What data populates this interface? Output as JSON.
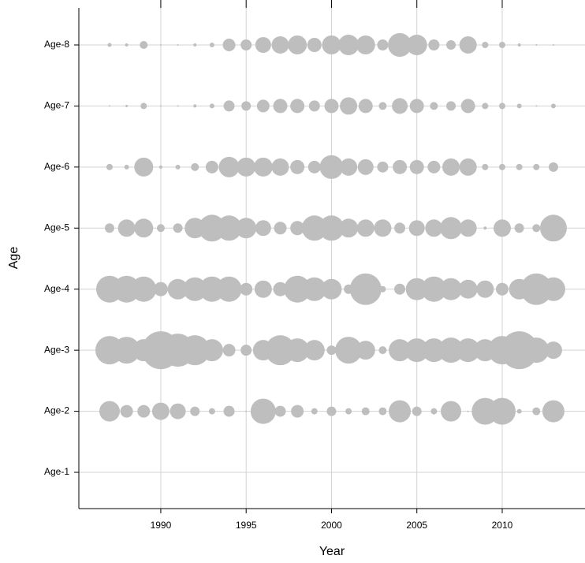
{
  "chart_data": {
    "type": "bubble",
    "x_label": "Year",
    "y_label": "Age",
    "x": [
      1987,
      1988,
      1989,
      1990,
      1991,
      1992,
      1993,
      1994,
      1995,
      1996,
      1997,
      1998,
      1999,
      2000,
      2001,
      2002,
      2003,
      2004,
      2005,
      2006,
      2007,
      2008,
      2009,
      2010,
      2011,
      2012,
      2013
    ],
    "y_categories": [
      "Age-1",
      "Age-2",
      "Age-3",
      "Age-4",
      "Age-5",
      "Age-6",
      "Age-7",
      "Age-8"
    ],
    "sizes": [
      [
        null,
        null,
        null,
        null,
        null,
        null,
        null,
        null,
        null,
        null,
        null,
        null,
        null,
        null,
        null,
        null,
        null,
        null,
        null,
        null,
        null,
        null,
        null,
        null,
        null,
        null,
        null
      ],
      [
        13,
        8,
        8,
        11,
        10,
        6,
        4,
        7,
        1,
        16,
        7,
        8,
        4,
        6,
        4,
        5,
        5,
        14,
        6,
        4,
        13,
        1,
        17,
        17,
        3,
        5,
        14
      ],
      [
        18,
        17,
        14,
        24,
        21,
        19,
        14,
        8,
        7,
        13,
        19,
        15,
        13,
        6,
        17,
        12,
        5,
        14,
        15,
        15,
        16,
        15,
        14,
        18,
        24,
        16,
        11
      ],
      [
        17,
        17,
        16,
        9,
        13,
        15,
        16,
        16,
        8,
        11,
        9,
        17,
        15,
        13,
        6,
        20,
        4,
        7,
        14,
        16,
        14,
        12,
        11,
        8,
        13,
        20,
        15
      ],
      [
        6,
        11,
        12,
        5,
        6,
        13,
        17,
        16,
        13,
        10,
        8,
        9,
        16,
        16,
        12,
        11,
        11,
        7,
        10,
        11,
        14,
        11,
        2,
        11,
        6,
        5,
        17
      ],
      [
        4,
        3,
        12,
        2,
        3,
        5,
        8,
        13,
        12,
        12,
        11,
        9,
        8,
        15,
        11,
        10,
        7,
        9,
        9,
        8,
        11,
        11,
        4,
        4,
        4,
        4,
        6
      ],
      [
        1,
        1.5,
        4,
        1,
        1,
        2,
        3,
        7,
        6,
        8,
        9,
        9,
        7,
        9,
        11,
        9,
        5,
        10,
        9,
        5,
        6,
        9,
        4,
        4,
        3,
        1,
        3
      ],
      [
        2.5,
        2,
        5,
        1,
        1,
        2,
        3,
        8,
        7,
        10,
        11,
        12,
        9,
        12,
        13,
        12,
        7,
        15,
        13,
        7,
        6,
        11,
        4,
        4,
        2,
        1,
        1
      ]
    ],
    "color": "#bebebe",
    "xlim": [
      1985.2,
      2014.85
    ],
    "xticks": [
      1990,
      1995,
      2000,
      2005,
      2010
    ],
    "grid": true
  }
}
